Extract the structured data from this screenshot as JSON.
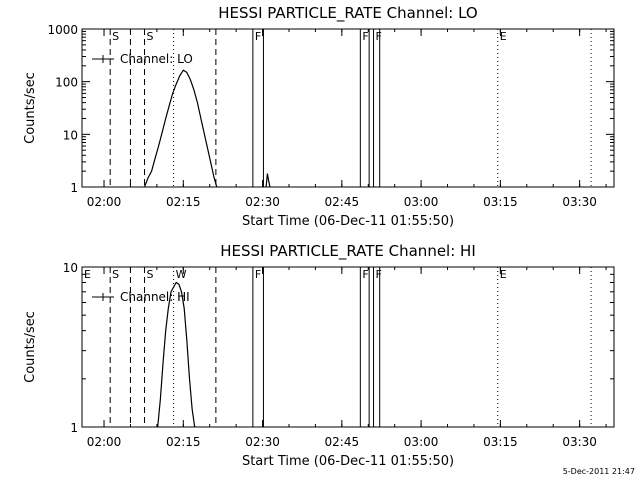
{
  "stamp": "5-Dec-2011 21:47",
  "chart_data": [
    {
      "type": "line",
      "title": "HESSI PARTICLE_RATE Channel: LO",
      "xlabel": "Start Time (06-Dec-11 01:55:50)",
      "ylabel": "Counts/sec",
      "yscale": "log",
      "ylim": [
        1,
        1000
      ],
      "xlim": [
        "01:55:50",
        "03:36:30"
      ],
      "x_ticks": [
        "02:00",
        "02:15",
        "02:30",
        "02:45",
        "03:00",
        "03:15",
        "03:30"
      ],
      "y_ticks": [
        "1",
        "10",
        "100",
        "1000"
      ],
      "legend": {
        "label": "Channel: LO",
        "placement": "top-left"
      },
      "series": [
        {
          "name": "Channel: LO",
          "x": [
            "02:07:40",
            "02:08:20",
            "02:09:00",
            "02:09:40",
            "02:10:20",
            "02:11:00",
            "02:11:40",
            "02:12:20",
            "02:13:00",
            "02:13:40",
            "02:14:20",
            "02:15:00",
            "02:15:40",
            "02:16:20",
            "02:17:00",
            "02:17:40",
            "02:18:20",
            "02:19:00",
            "02:19:40",
            "02:20:20",
            "02:20:50",
            "02:21:20"
          ],
          "values": [
            1,
            1.5,
            2,
            3.5,
            6,
            11,
            20,
            35,
            60,
            90,
            130,
            165,
            150,
            110,
            70,
            40,
            20,
            10,
            5,
            2.5,
            1.5,
            1
          ]
        },
        {
          "name": "Channel: LO",
          "x": [
            "02:30:40",
            "02:30:55",
            "02:31:10",
            "02:31:25"
          ],
          "values": [
            1,
            1.8,
            1.3,
            1
          ]
        }
      ],
      "annotations": [
        {
          "label": "S",
          "time": "02:01:10",
          "style": "dashed"
        },
        {
          "label": "",
          "time": "02:05:00",
          "style": "dashed"
        },
        {
          "label": "S",
          "time": "02:07:40",
          "style": "dashed"
        },
        {
          "label": "",
          "time": "02:21:10",
          "style": "dashed"
        },
        {
          "label": "",
          "time": "02:13:10",
          "style": "dotted"
        },
        {
          "label": "F",
          "time": "02:28:10",
          "style": "solid"
        },
        {
          "label": "",
          "time": "02:30:10",
          "style": "solid"
        },
        {
          "label": "F",
          "time": "02:48:30",
          "style": "solid"
        },
        {
          "label": "",
          "time": "02:50:10",
          "style": "solid"
        },
        {
          "label": "F",
          "time": "02:51:00",
          "style": "solid"
        },
        {
          "label": "",
          "time": "02:52:10",
          "style": "solid"
        },
        {
          "label": "E",
          "time": "03:14:30",
          "style": "dotted"
        },
        {
          "label": "",
          "time": "03:32:10",
          "style": "dotted"
        }
      ],
      "corner_label": ""
    },
    {
      "type": "line",
      "title": "HESSI PARTICLE_RATE Channel: HI",
      "xlabel": "Start Time (06-Dec-11 01:55:50)",
      "ylabel": "Counts/sec",
      "yscale": "log",
      "ylim": [
        1,
        10
      ],
      "xlim": [
        "01:55:50",
        "03:36:30"
      ],
      "x_ticks": [
        "02:00",
        "02:15",
        "02:30",
        "02:45",
        "03:00",
        "03:15",
        "03:30"
      ],
      "y_ticks": [
        "1",
        "10"
      ],
      "legend": {
        "label": "Channel: HI",
        "placement": "top-left"
      },
      "series": [
        {
          "name": "Channel: HI",
          "x": [
            "02:10:10",
            "02:10:40",
            "02:11:10",
            "02:11:40",
            "02:12:10",
            "02:12:40",
            "02:13:10",
            "02:13:40",
            "02:14:10",
            "02:14:40",
            "02:15:10",
            "02:15:40",
            "02:16:10",
            "02:16:40",
            "02:17:10"
          ],
          "values": [
            1,
            1.5,
            2.5,
            4,
            5.5,
            7,
            7.5,
            8,
            7.8,
            7,
            5.5,
            3.5,
            2,
            1.3,
            1
          ]
        }
      ],
      "annotations": [
        {
          "label": "E",
          "time": "01:55:50",
          "style": "none"
        },
        {
          "label": "S",
          "time": "02:01:10",
          "style": "dashed"
        },
        {
          "label": "",
          "time": "02:05:00",
          "style": "dashed"
        },
        {
          "label": "S",
          "time": "02:07:40",
          "style": "dashed"
        },
        {
          "label": "",
          "time": "02:21:10",
          "style": "dashed"
        },
        {
          "label": "W",
          "time": "02:13:10",
          "style": "dotted"
        },
        {
          "label": "F",
          "time": "02:28:10",
          "style": "solid"
        },
        {
          "label": "",
          "time": "02:30:10",
          "style": "solid"
        },
        {
          "label": "F",
          "time": "02:48:30",
          "style": "solid"
        },
        {
          "label": "",
          "time": "02:50:10",
          "style": "solid"
        },
        {
          "label": "F",
          "time": "02:51:00",
          "style": "solid"
        },
        {
          "label": "",
          "time": "02:52:10",
          "style": "solid"
        },
        {
          "label": "E",
          "time": "03:14:30",
          "style": "dotted"
        },
        {
          "label": "",
          "time": "03:32:10",
          "style": "dotted"
        }
      ]
    }
  ]
}
